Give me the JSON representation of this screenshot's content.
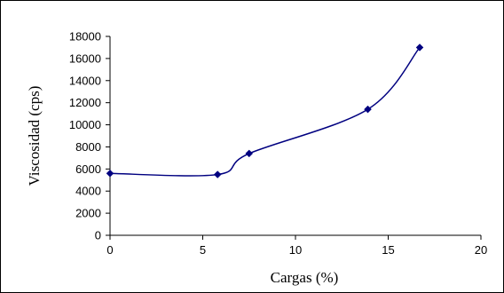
{
  "chart_data": {
    "type": "line",
    "title": "",
    "xlabel": "Cargas (%)",
    "ylabel": "Viscosidad (cps)",
    "xlim": [
      0,
      20
    ],
    "ylim": [
      0,
      18000
    ],
    "xticks": [
      0,
      5,
      10,
      15,
      20
    ],
    "yticks": [
      0,
      2000,
      4000,
      6000,
      8000,
      10000,
      12000,
      14000,
      16000,
      18000
    ],
    "grid": false,
    "legend": "none",
    "series": [
      {
        "color": "#000080",
        "marker": "diamond",
        "x": [
          0,
          5.8,
          7.5,
          13.9,
          16.7
        ],
        "y": [
          5600,
          5500,
          7400,
          11400,
          17000
        ]
      }
    ]
  }
}
